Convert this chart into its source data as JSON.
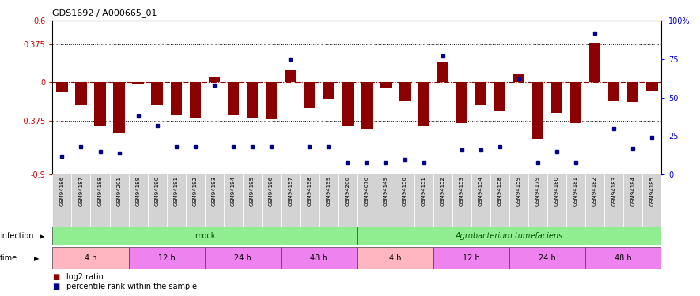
{
  "title": "GDS1692 / A000665_01",
  "samples": [
    "GSM94186",
    "GSM94187",
    "GSM94188",
    "GSM94201",
    "GSM94189",
    "GSM94190",
    "GSM94191",
    "GSM94192",
    "GSM94193",
    "GSM94194",
    "GSM94195",
    "GSM94196",
    "GSM94197",
    "GSM94198",
    "GSM94199",
    "GSM94200",
    "GSM94076",
    "GSM94149",
    "GSM94150",
    "GSM94151",
    "GSM94152",
    "GSM94153",
    "GSM94154",
    "GSM94158",
    "GSM94159",
    "GSM94179",
    "GSM94180",
    "GSM94181",
    "GSM94182",
    "GSM94183",
    "GSM94184",
    "GSM94185"
  ],
  "log2_ratio": [
    -0.1,
    -0.22,
    -0.43,
    -0.5,
    -0.02,
    -0.22,
    -0.32,
    -0.35,
    0.05,
    -0.32,
    -0.35,
    -0.36,
    0.12,
    -0.25,
    -0.17,
    -0.42,
    -0.45,
    -0.05,
    -0.18,
    -0.42,
    0.2,
    -0.4,
    -0.22,
    -0.28,
    0.08,
    -0.55,
    -0.3,
    -0.4,
    0.38,
    -0.18,
    -0.19,
    -0.08
  ],
  "percentile": [
    12,
    18,
    15,
    14,
    38,
    32,
    18,
    18,
    58,
    18,
    18,
    18,
    75,
    18,
    18,
    8,
    8,
    8,
    10,
    8,
    77,
    16,
    16,
    18,
    62,
    8,
    15,
    8,
    92,
    30,
    17,
    24
  ],
  "bar_color": "#8B0000",
  "dot_color": "#00008B",
  "ylim_left": [
    -0.9,
    0.6
  ],
  "ylim_right": [
    0,
    100
  ],
  "yticks_left": [
    -0.9,
    -0.375,
    0.0,
    0.375,
    0.6
  ],
  "ytick_labels_left": [
    "-0.9",
    "-0.375",
    "0",
    "0.375",
    "0.6"
  ],
  "yticks_right": [
    0,
    25,
    50,
    75,
    100
  ],
  "ytick_labels_right": [
    "0",
    "25",
    "50",
    "75",
    "100%"
  ],
  "hlines": [
    0.375,
    -0.375
  ],
  "time_groups": [
    {
      "label": "4 h",
      "start": 0,
      "end": 3,
      "color": "#FFB6C1"
    },
    {
      "label": "12 h",
      "start": 4,
      "end": 7,
      "color": "#EE82EE"
    },
    {
      "label": "24 h",
      "start": 8,
      "end": 11,
      "color": "#EE82EE"
    },
    {
      "label": "48 h",
      "start": 12,
      "end": 15,
      "color": "#EE82EE"
    },
    {
      "label": "4 h",
      "start": 16,
      "end": 19,
      "color": "#FFB6C1"
    },
    {
      "label": "12 h",
      "start": 20,
      "end": 23,
      "color": "#EE82EE"
    },
    {
      "label": "24 h",
      "start": 24,
      "end": 27,
      "color": "#EE82EE"
    },
    {
      "label": "48 h",
      "start": 28,
      "end": 31,
      "color": "#EE82EE"
    }
  ],
  "infection_groups": [
    {
      "label": "mock",
      "start": 0,
      "end": 15
    },
    {
      "label": "Agrobacterium tumefaciens",
      "start": 16,
      "end": 31
    }
  ],
  "infection_color": "#90EE90",
  "sample_bg_color": "#D3D3D3",
  "bg_color": "#FFFFFF"
}
